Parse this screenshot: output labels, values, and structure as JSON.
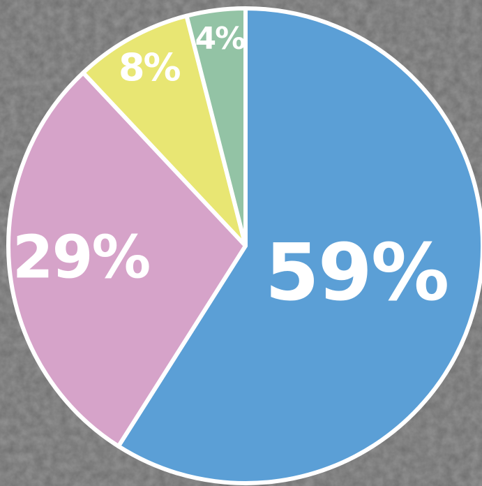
{
  "chart_data": {
    "type": "pie",
    "values": [
      59,
      29,
      8,
      4
    ],
    "value_labels": [
      "59%",
      "29%",
      "8%",
      "4%"
    ],
    "colors": [
      "#5b9fd6",
      "#d6a3c9",
      "#e8e673",
      "#93c3a5"
    ]
  }
}
